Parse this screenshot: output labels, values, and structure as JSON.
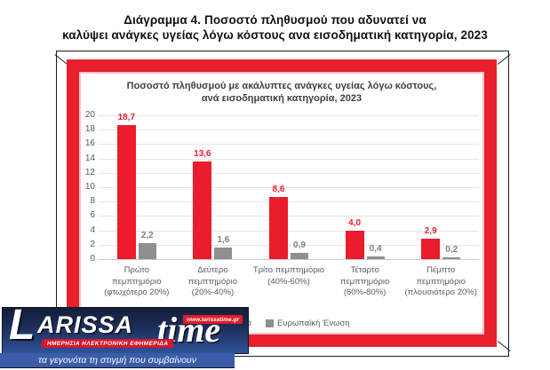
{
  "page_title": {
    "line1": "Διάγραμμα 4. Ποσοστό πληθυσμού που αδυνατεί να",
    "line2": "καλύψει ανάγκες υγείας λόγω κόστους ανα εισοδηματική κατηγορία, 2023"
  },
  "chart_data": {
    "type": "bar",
    "title_line1": "Ποσοστό πληθυσμού με ακάλυπτες ανάγκες υγείας λόγω κόστους,",
    "title_line2": "ανά εισοδηματική κατηγορία, 2023",
    "categories": [
      "Πρώτο πεμπτημόριο (φτωχότερο 20%)",
      "Δεύτερο πεμπτημόριο (20%-40%)",
      "Τρίτο πεμπτημόριο (40%-60%)",
      "Τέταρτο πεμπτημόριο (60%-80%)",
      "Πέμπτο πεμπτημόριο (πλουσιότερο 20%)"
    ],
    "series": [
      {
        "name": "Ελλάδα",
        "color": "#ea1c2d",
        "label_color": "#e8202c",
        "values": [
          18.7,
          13.6,
          8.6,
          4.0,
          2.9
        ],
        "labels": [
          "18,7",
          "13,6",
          "8,6",
          "4,0",
          "2,9"
        ]
      },
      {
        "name": "Ευρωπαϊκή Ένωση",
        "color": "#8f8f8f",
        "label_color": "#7f7f7f",
        "values": [
          2.2,
          1.6,
          0.9,
          0.4,
          0.2
        ],
        "labels": [
          "2,2",
          "1,6",
          "0,9",
          "0,4",
          "0,2"
        ]
      }
    ],
    "ylim": [
      0,
      20
    ],
    "ytick_step": 2,
    "grid": true,
    "legend_position": "bottom"
  },
  "watermark": {
    "brand_initial": "L",
    "brand_rest": "ARISSA",
    "brand_suffix": "time",
    "url_badge": "www.larissatime.gr",
    "sub_badge": "ΗΜΕΡΗΣΙΑ ΗΛΕΚΤΡΟΝΙΚΗ ΕΦΗΜΕΡΙΔΑ",
    "slogan": "τα γεγονότα τη στιγμή που συμβαίνουν"
  },
  "colors": {
    "frame_red": "#e8202c",
    "grid": "#e4e4e4",
    "axis_text": "#595959"
  }
}
